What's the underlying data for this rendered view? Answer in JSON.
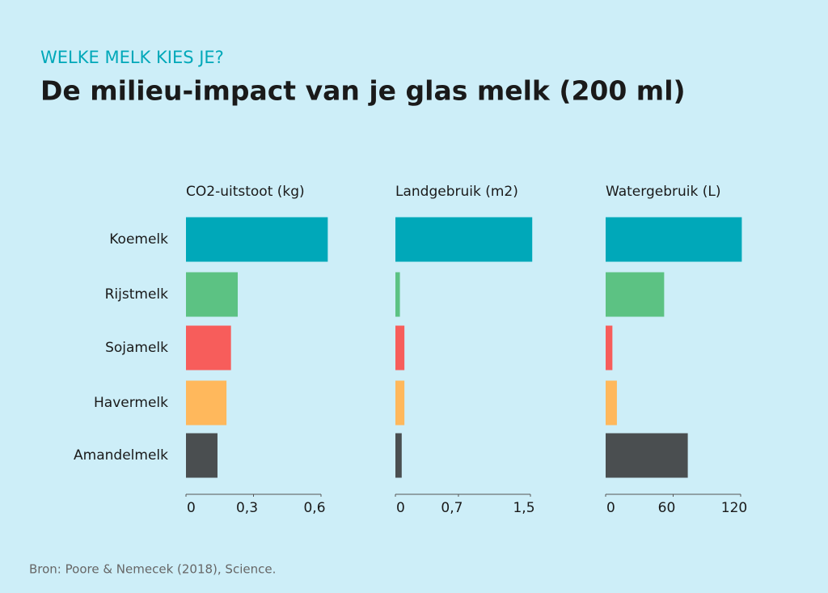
{
  "chart_data": {
    "type": "bar",
    "kicker": "WELKE MELK KIES JE?",
    "title": "De milieu-impact van je glas melk (200 ml)",
    "source": "Bron: Poore & Nemecek (2018), Science.",
    "categories": [
      "Koemelk",
      "Rijstmelk",
      "Sojamelk",
      "Havermelk",
      "Amandelmelk"
    ],
    "colors": [
      "#00a8b9",
      "#5cc283",
      "#f75d5b",
      "#ffb85c",
      "#4a4e50"
    ],
    "panels": [
      {
        "title": "CO2-uitstoot (kg)",
        "values": [
          0.63,
          0.23,
          0.2,
          0.18,
          0.14
        ],
        "xlim": [
          0,
          0.6
        ],
        "xticks": [
          0,
          {
            "value": 0.3,
            "label": "0,3"
          },
          {
            "value": 0.6,
            "label": "0,6"
          }
        ]
      },
      {
        "title": "Landgebruik (m2)",
        "values": [
          1.52,
          0.05,
          0.1,
          0.1,
          0.07
        ],
        "xlim": [
          0,
          1.5
        ],
        "xticks": [
          0,
          {
            "value": 0.7,
            "label": "0,7"
          },
          {
            "value": 1.5,
            "label": "1,5"
          }
        ]
      },
      {
        "title": "Watergebruik (L)",
        "values": [
          121,
          52,
          6,
          10,
          73
        ],
        "xlim": [
          0,
          120
        ],
        "xticks": [
          0,
          60,
          120
        ]
      }
    ]
  }
}
